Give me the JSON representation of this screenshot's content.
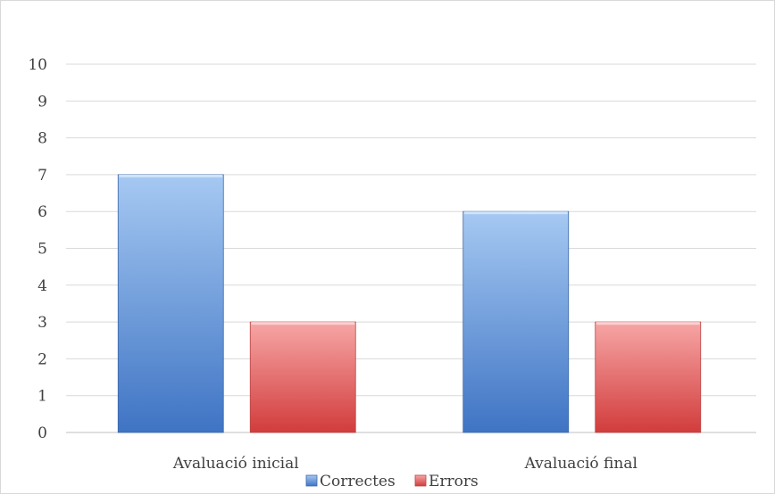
{
  "chart_data": {
    "type": "bar",
    "title": "",
    "xlabel": "",
    "ylabel": "",
    "categories": [
      "Avaluació inicial",
      "Avaluació final"
    ],
    "series": [
      {
        "name": "Correctes",
        "values": [
          7,
          6
        ],
        "color": "#4f81bd"
      },
      {
        "name": "Errors",
        "values": [
          3,
          3
        ],
        "color": "#c0504d"
      }
    ],
    "ylim": [
      0,
      10
    ],
    "yticks": [
      0,
      1,
      2,
      3,
      4,
      5,
      6,
      7,
      8,
      9,
      10
    ],
    "grid": true,
    "legend": "bottom"
  }
}
